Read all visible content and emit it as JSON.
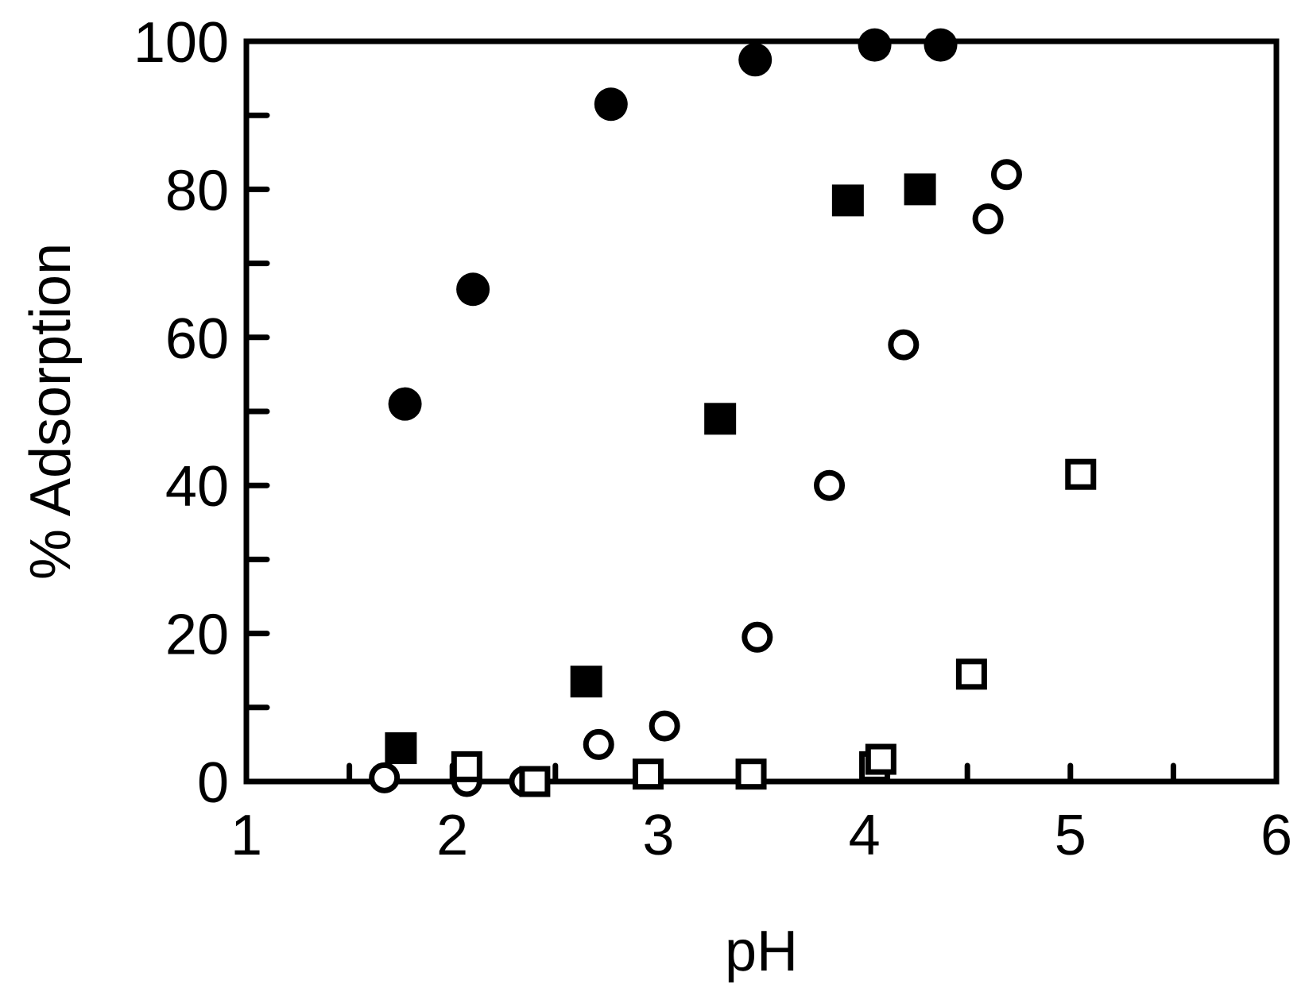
{
  "chart_data": {
    "type": "scatter",
    "xlabel": "pH",
    "ylabel": "% Adsorption",
    "xlim": [
      1,
      6
    ],
    "ylim": [
      0,
      100
    ],
    "x_ticks": [
      1,
      2,
      3,
      4,
      5,
      6
    ],
    "y_ticks": [
      0,
      20,
      40,
      60,
      80,
      100
    ],
    "grid": false,
    "legend": "none",
    "series": [
      {
        "marker": "filled-circle",
        "color": "#000000",
        "points": [
          [
            1.77,
            51
          ],
          [
            2.1,
            66.5
          ],
          [
            2.77,
            91.5
          ],
          [
            3.47,
            97.5
          ],
          [
            4.05,
            99.5
          ],
          [
            4.37,
            99.5
          ]
        ]
      },
      {
        "marker": "filled-square",
        "color": "#000000",
        "points": [
          [
            1.75,
            4.5
          ],
          [
            2.65,
            13.5
          ],
          [
            3.3,
            49
          ],
          [
            3.92,
            78.5
          ],
          [
            4.27,
            80
          ]
        ]
      },
      {
        "marker": "open-circle",
        "color": "#000000",
        "points": [
          [
            1.67,
            0.5
          ],
          [
            2.07,
            0
          ],
          [
            2.35,
            0
          ],
          [
            2.71,
            5
          ],
          [
            3.03,
            7.5
          ],
          [
            3.48,
            19.5
          ],
          [
            3.83,
            40
          ],
          [
            4.19,
            59
          ],
          [
            4.6,
            76
          ],
          [
            4.69,
            82
          ]
        ]
      },
      {
        "marker": "open-square",
        "color": "#000000",
        "points": [
          [
            2.07,
            2
          ],
          [
            2.4,
            0
          ],
          [
            2.95,
            1
          ],
          [
            3.45,
            1
          ],
          [
            4.05,
            2
          ],
          [
            4.08,
            3
          ],
          [
            4.52,
            14.5
          ],
          [
            5.05,
            41.5
          ]
        ]
      }
    ]
  }
}
